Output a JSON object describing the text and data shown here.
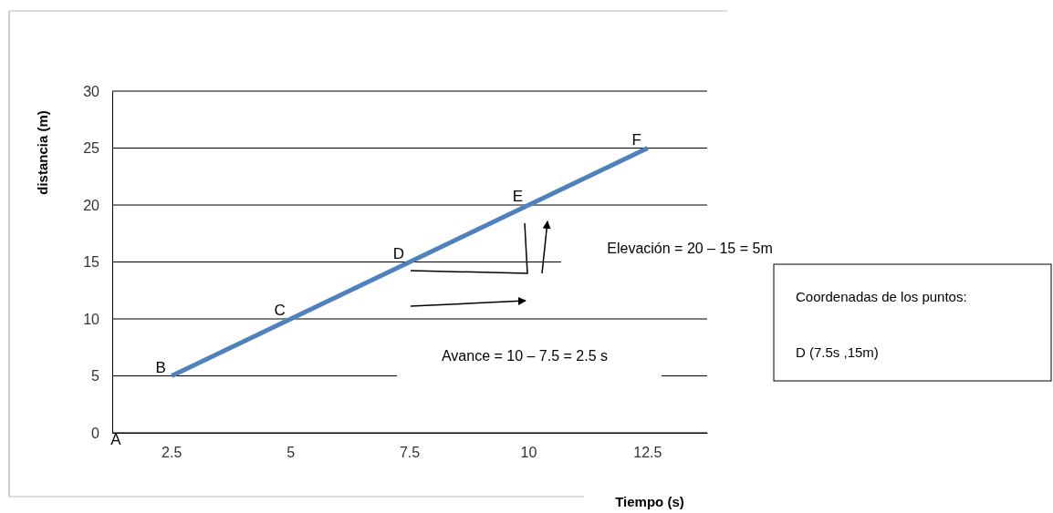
{
  "chart_data": {
    "type": "line",
    "xlabel": "Tiempo (s)",
    "ylabel": "distancia (m)",
    "categories": [
      "2.5",
      "5",
      "7.5",
      "10",
      "12.5"
    ],
    "series": [
      {
        "color": "#4f81bd",
        "values": [
          5,
          10,
          15,
          20,
          25
        ]
      }
    ],
    "ylim": [
      0,
      30
    ],
    "yticks": [
      0,
      5,
      10,
      15,
      20,
      25,
      30
    ],
    "grid": "y",
    "marker": "none",
    "line_style": "solid",
    "annotations": [
      "A",
      {
        "text": "B",
        "x": "2.5",
        "y": 5
      },
      {
        "text": "C",
        "x": "5",
        "y": 10
      },
      {
        "text": "D",
        "x": "7.5",
        "y": 15
      },
      {
        "text": "E",
        "x": "10",
        "y": 20
      },
      {
        "text": "F",
        "x": "12.5",
        "y": 25
      },
      "Elevación = 20 – 15 = 5m",
      "Avance = 10 – 7.5 = 2.5 s",
      "Coordenadas de los puntos:",
      "D (7.5s ,15m)"
    ]
  }
}
